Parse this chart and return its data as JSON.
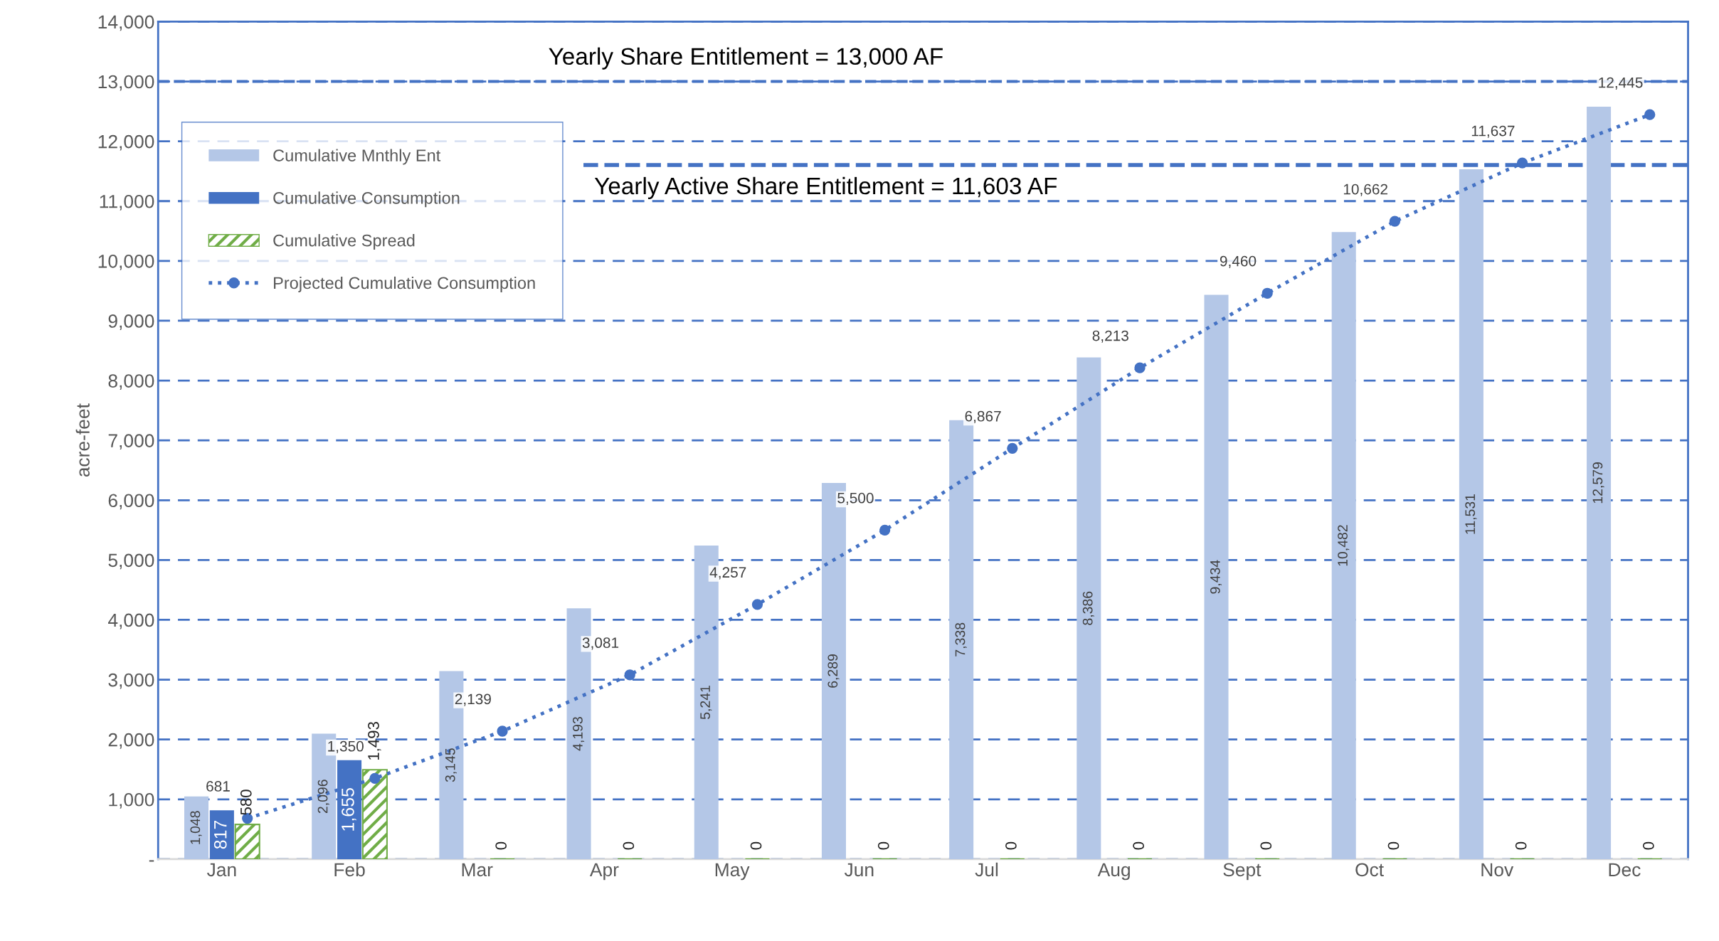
{
  "chart_data": {
    "type": "bar",
    "ylabel": "acre-feet",
    "categories": [
      "Jan",
      "Feb",
      "Mar",
      "Apr",
      "May",
      "Jun",
      "Jul",
      "Aug",
      "Sept",
      "Oct",
      "Nov",
      "Dec"
    ],
    "series": [
      {
        "name": "Cumulative Mnthly Ent",
        "color": "#b4c7e7",
        "values": [
          1048,
          2096,
          3145,
          4193,
          5241,
          6289,
          7338,
          8386,
          9434,
          10482,
          11531,
          12579
        ],
        "value_labels": [
          "1,048",
          "2,096",
          "3,145",
          "4,193",
          "5,241",
          "6,289",
          "7,338",
          "8,386",
          "9,434",
          "10,482",
          "11,531",
          "12,579"
        ]
      },
      {
        "name": "Cumulative Consumption",
        "color": "#4472c4",
        "values": [
          817,
          1655,
          null,
          null,
          null,
          null,
          null,
          null,
          null,
          null,
          null,
          null
        ],
        "value_labels": [
          "817",
          "1,655",
          null,
          null,
          null,
          null,
          null,
          null,
          null,
          null,
          null,
          null
        ]
      },
      {
        "name": "Cumulative Spread",
        "color": "#70ad47",
        "values": [
          580,
          1493,
          0,
          0,
          0,
          0,
          0,
          0,
          0,
          0,
          0,
          0
        ],
        "value_labels": [
          "580",
          "1,493",
          "0",
          "0",
          "0",
          "0",
          "0",
          "0",
          "0",
          "0",
          "0",
          "0"
        ]
      },
      {
        "name": "Projected Cumulative Consumption",
        "type": "line",
        "color": "#4472c4",
        "marker": "circle",
        "line_style": "dotted",
        "values": [
          681,
          1350,
          2139,
          3081,
          4257,
          5500,
          6867,
          8213,
          9460,
          10662,
          11637,
          12445
        ],
        "value_labels": [
          "681",
          "1,350",
          "2,139",
          "3,081",
          "4,257",
          "5,500",
          "6,867",
          "8,213",
          "9,460",
          "10,662",
          "11,637",
          "12,445"
        ]
      }
    ],
    "ylim": [
      0,
      14000
    ],
    "yticks": [
      {
        "value": 0,
        "label": "-"
      },
      {
        "value": 1000,
        "label": "1,000"
      },
      {
        "value": 2000,
        "label": "2,000"
      },
      {
        "value": 3000,
        "label": "3,000"
      },
      {
        "value": 4000,
        "label": "4,000"
      },
      {
        "value": 5000,
        "label": "5,000"
      },
      {
        "value": 6000,
        "label": "6,000"
      },
      {
        "value": 7000,
        "label": "7,000"
      },
      {
        "value": 8000,
        "label": "8,000"
      },
      {
        "value": 9000,
        "label": "9,000"
      },
      {
        "value": 10000,
        "label": "10,000"
      },
      {
        "value": 11000,
        "label": "11,000"
      },
      {
        "value": 12000,
        "label": "12,000"
      },
      {
        "value": 13000,
        "label": "13,000"
      },
      {
        "value": 14000,
        "label": "14,000"
      }
    ],
    "grid": "y",
    "legend": "top left",
    "ref_lines": [
      {
        "axis": "y",
        "value": 13000,
        "label": "Yearly Share Entitlement = 13,000 AF",
        "color": "#4472c4",
        "line_style": "dashed"
      },
      {
        "axis": "y",
        "value": 11603,
        "label": "Yearly Active Share Entitlement = 11,603 AF",
        "color": "#4472c4",
        "line_style": "dashed"
      }
    ]
  }
}
